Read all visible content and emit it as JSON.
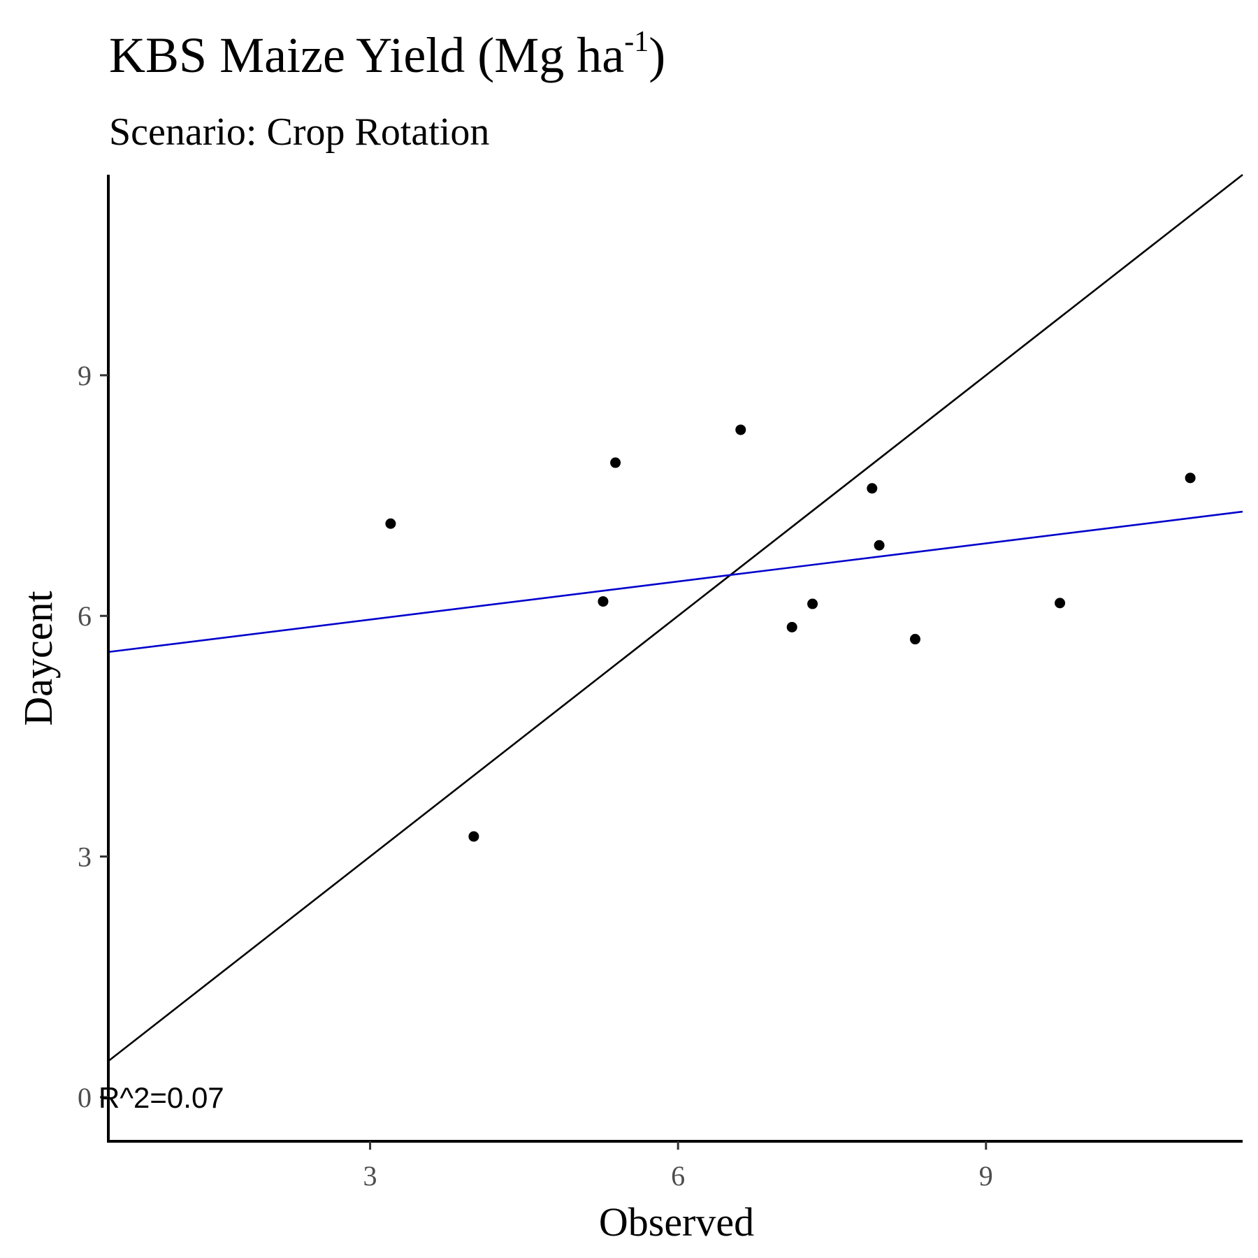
{
  "chart_data": {
    "type": "scatter",
    "title": {
      "main": "KBS Maize Yield (Mg ha",
      "superscript": "-1",
      "close": ")"
    },
    "subtitle": "Scenario: Crop Rotation",
    "xlabel": "Observed",
    "ylabel": "Daycent",
    "xlim": [
      0.45,
      11.5
    ],
    "ylim": [
      -0.55,
      11.5
    ],
    "xticks": [
      3,
      6,
      9
    ],
    "yticks": [
      0,
      3,
      6,
      9
    ],
    "grid": false,
    "points": [
      {
        "x": 3.2,
        "y": 7.15
      },
      {
        "x": 4.01,
        "y": 3.25
      },
      {
        "x": 5.27,
        "y": 6.18
      },
      {
        "x": 5.39,
        "y": 7.91
      },
      {
        "x": 6.61,
        "y": 8.32
      },
      {
        "x": 7.11,
        "y": 5.86
      },
      {
        "x": 7.31,
        "y": 6.15
      },
      {
        "x": 7.89,
        "y": 7.59
      },
      {
        "x": 7.96,
        "y": 6.88
      },
      {
        "x": 8.31,
        "y": 5.71
      },
      {
        "x": 9.72,
        "y": 6.16
      },
      {
        "x": 10.99,
        "y": 7.72
      }
    ],
    "lines": [
      {
        "role": "one-to-one",
        "color": "#000000",
        "from": [
          0.45,
          0.45
        ],
        "to": [
          11.5,
          11.5
        ]
      },
      {
        "role": "regression-fit",
        "color": "#0000cc",
        "from": [
          0.45,
          5.55
        ],
        "to": [
          11.5,
          7.3
        ]
      }
    ],
    "annotation": {
      "text": "R^2=0.07",
      "x": 0.45,
      "y": 0
    }
  }
}
